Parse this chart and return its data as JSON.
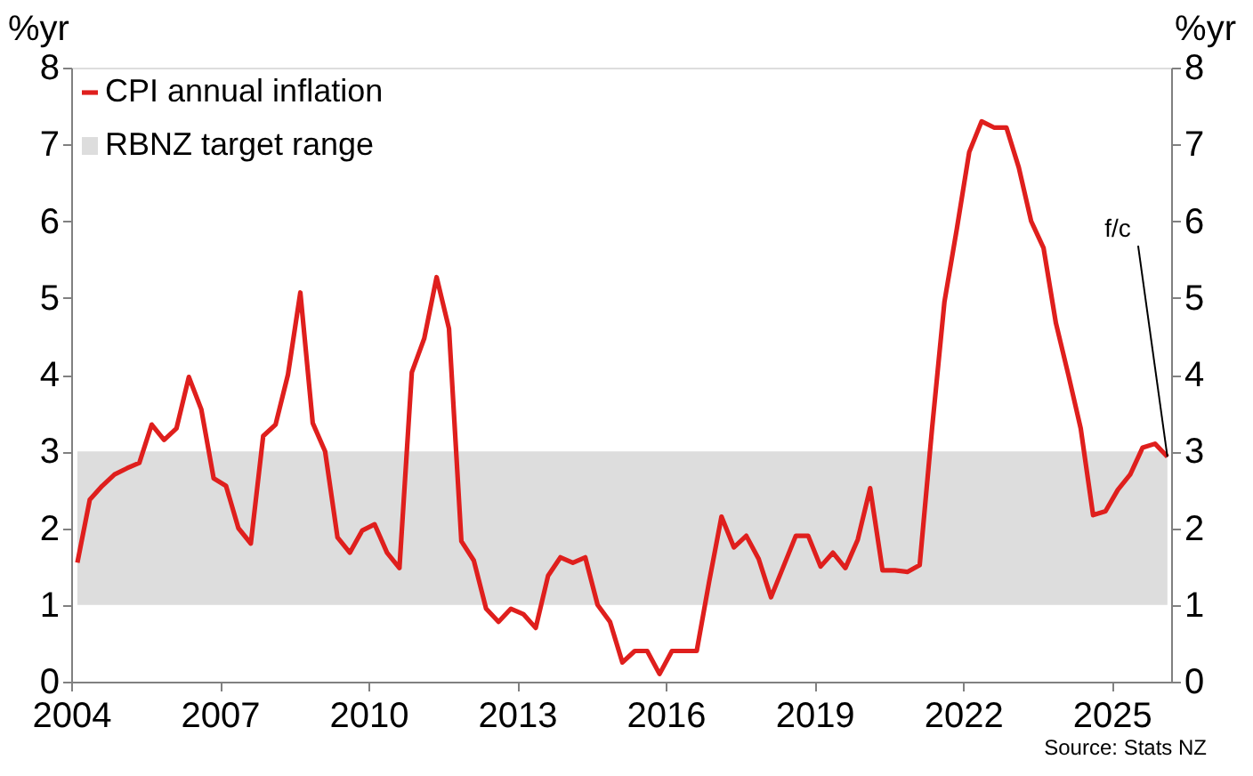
{
  "chart_data": {
    "type": "line",
    "ylabel": "%yr",
    "y2label": "%yr",
    "x": [
      2004.125,
      2004.375,
      2004.625,
      2004.875,
      2005.125,
      2005.375,
      2005.625,
      2005.875,
      2006.125,
      2006.375,
      2006.625,
      2006.875,
      2007.125,
      2007.375,
      2007.625,
      2007.875,
      2008.125,
      2008.375,
      2008.625,
      2008.875,
      2009.125,
      2009.375,
      2009.625,
      2009.875,
      2010.125,
      2010.375,
      2010.625,
      2010.875,
      2011.125,
      2011.375,
      2011.625,
      2011.875,
      2012.125,
      2012.375,
      2012.625,
      2012.875,
      2013.125,
      2013.375,
      2013.625,
      2013.875,
      2014.125,
      2014.375,
      2014.625,
      2014.875,
      2015.125,
      2015.375,
      2015.625,
      2015.875,
      2016.125,
      2016.375,
      2016.625,
      2016.875,
      2017.125,
      2017.375,
      2017.625,
      2017.875,
      2018.125,
      2018.375,
      2018.625,
      2018.875,
      2019.125,
      2019.375,
      2019.625,
      2019.875,
      2020.125,
      2020.375,
      2020.625,
      2020.875,
      2021.125,
      2021.375,
      2021.625,
      2021.875,
      2022.125,
      2022.375,
      2022.625,
      2022.875,
      2023.125,
      2023.375,
      2023.625,
      2023.875,
      2024.125,
      2024.375,
      2024.625,
      2024.875,
      2025.125,
      2025.375,
      2025.625,
      2025.875,
      2026.125
    ],
    "series": [
      {
        "name": "CPI annual inflation",
        "color": "#df1f1d",
        "values": [
          1.55,
          2.37,
          2.55,
          2.7,
          2.78,
          2.85,
          3.35,
          3.15,
          3.3,
          3.97,
          3.55,
          2.65,
          2.55,
          2.0,
          1.8,
          3.2,
          3.35,
          4.0,
          5.07,
          3.37,
          3.0,
          1.88,
          1.68,
          1.97,
          2.05,
          1.68,
          1.48,
          4.03,
          4.47,
          5.27,
          4.6,
          1.83,
          1.58,
          0.95,
          0.78,
          0.95,
          0.88,
          0.7,
          1.38,
          1.62,
          1.55,
          1.62,
          1.0,
          0.78,
          0.25,
          0.4,
          0.4,
          0.1,
          0.4,
          0.4,
          0.4,
          1.3,
          2.15,
          1.75,
          1.9,
          1.6,
          1.1,
          1.5,
          1.9,
          1.9,
          1.5,
          1.68,
          1.48,
          1.85,
          2.52,
          1.45,
          1.45,
          1.43,
          1.52,
          3.3,
          4.95,
          5.9,
          6.9,
          7.3,
          7.22,
          7.22,
          6.7,
          6.0,
          5.65,
          4.67,
          4.0,
          3.3,
          2.17,
          2.22,
          2.5,
          2.7,
          3.05,
          3.1,
          2.93
        ]
      }
    ],
    "xlim": [
      2004,
      2026.2
    ],
    "xticks": [
      2004,
      2007,
      2010,
      2013,
      2016,
      2019,
      2022,
      2025
    ],
    "ylim": [
      0,
      8
    ],
    "yticks": [
      0,
      1,
      2,
      3,
      4,
      5,
      6,
      7,
      8
    ],
    "y2lim": [
      0,
      8
    ],
    "y2ticks": [
      0,
      1,
      2,
      3,
      4,
      5,
      6,
      7,
      8
    ],
    "bands": [
      {
        "axis": "y",
        "from": 1,
        "to": 3,
        "label": "RBNZ target range",
        "color": "#dddddd"
      }
    ],
    "annotations": [
      {
        "text": "f/c",
        "x": 2026.125,
        "y": 2.93
      },
      "Source: Stats NZ"
    ],
    "legend": "top left",
    "grid": false,
    "marker": "none",
    "line_style": "solid"
  }
}
